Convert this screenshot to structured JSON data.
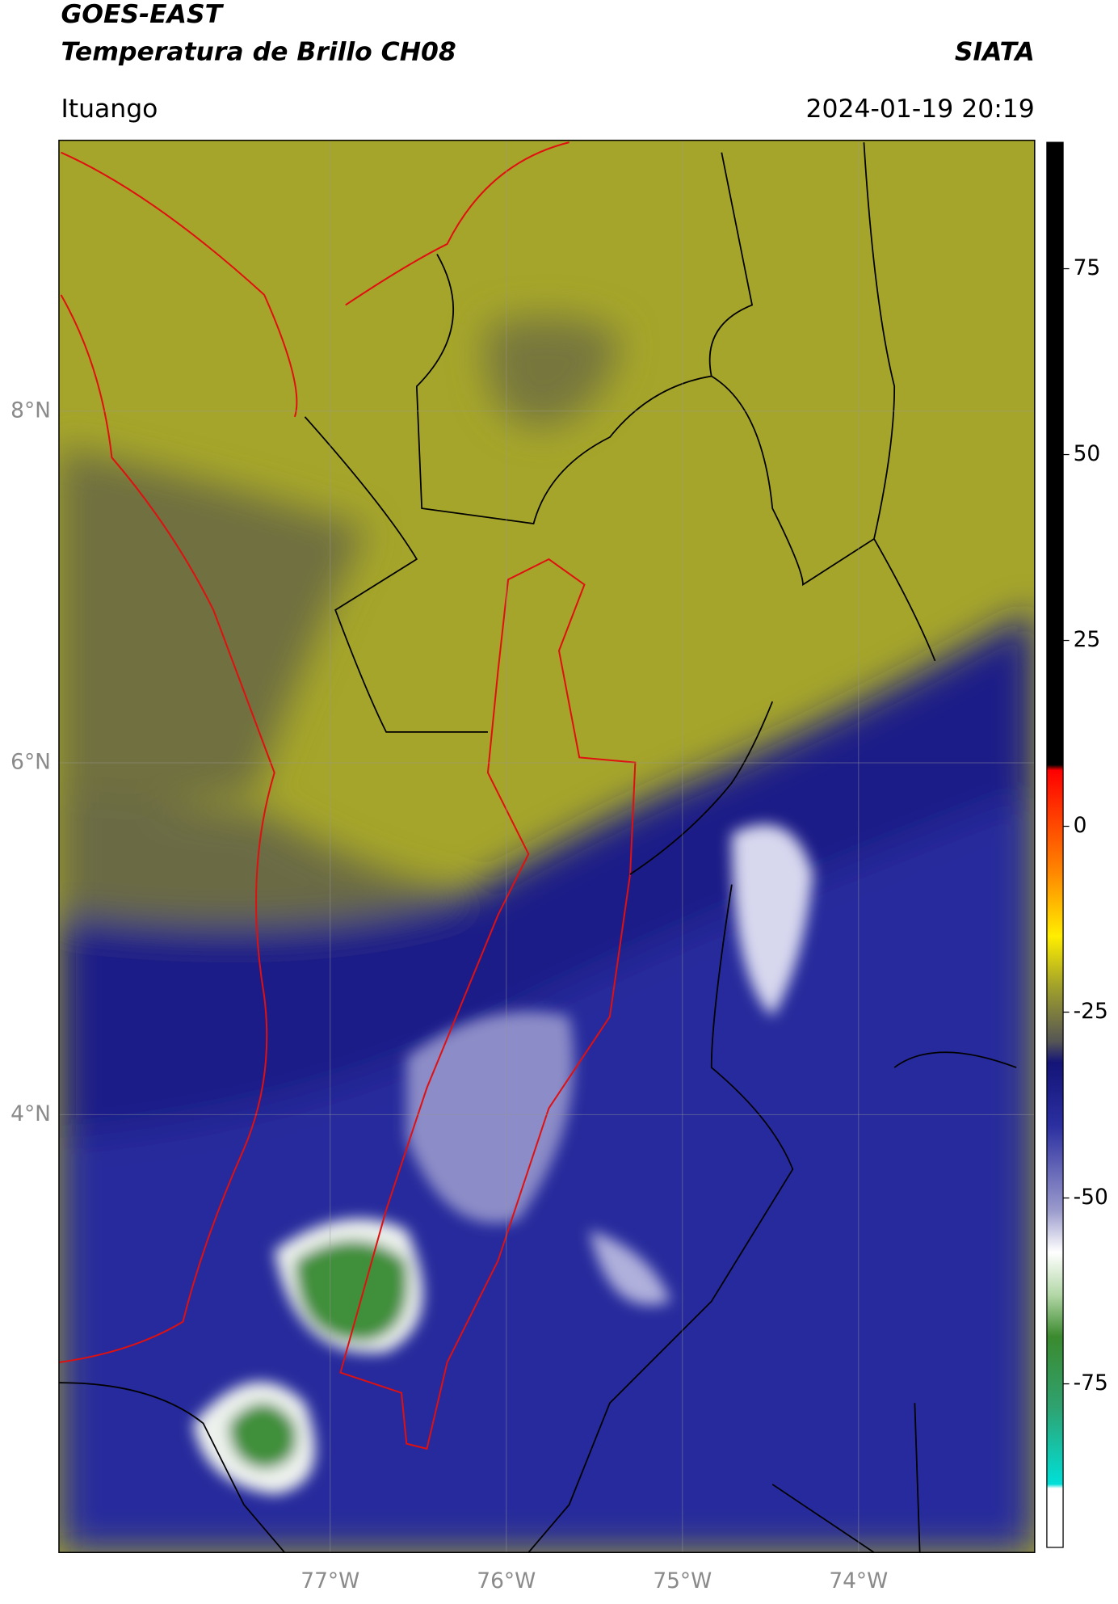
{
  "header": {
    "title": "GOES-EAST",
    "subtitle": "Temperatura de Brillo CH08",
    "brand": "SIATA",
    "location": "Ituango",
    "datetime": "2024-01-19 20:19"
  },
  "map": {
    "lat_range": [
      1.51,
      9.54
    ],
    "lon_range": [
      -78.54,
      -73.0
    ],
    "lat_ticks": [
      {
        "value": 8,
        "label": "8°N"
      },
      {
        "value": 6,
        "label": "6°N"
      },
      {
        "value": 4,
        "label": "4°N"
      }
    ],
    "lon_ticks": [
      {
        "value": -77,
        "label": "77°W"
      },
      {
        "value": -76,
        "label": "76°W"
      },
      {
        "value": -75,
        "label": "75°W"
      },
      {
        "value": -74,
        "label": "74°W"
      }
    ]
  },
  "colorbar": {
    "range": [
      -97,
      92
    ],
    "ticks": [
      75,
      50,
      25,
      0,
      -25,
      -50,
      -75
    ]
  }
}
